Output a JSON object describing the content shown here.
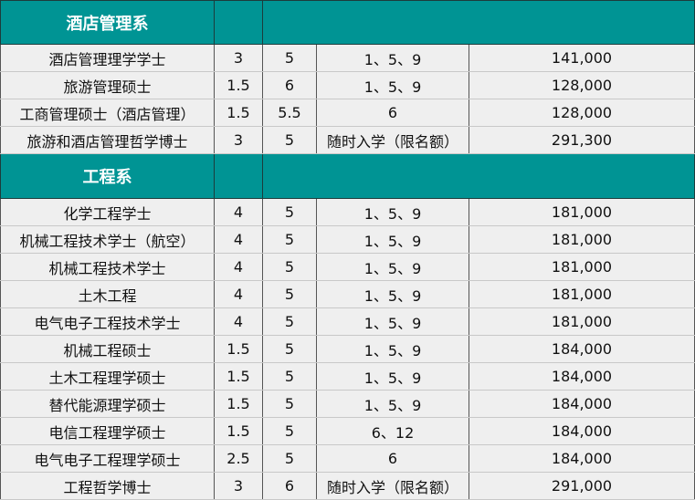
{
  "colors": {
    "section_header_bg": "#009494",
    "row_bg": "#efefef"
  },
  "sections": [
    {
      "title": "酒店管理系",
      "rows": [
        {
          "program": "酒店管理理学学士",
          "duration": "3",
          "ielts": "5",
          "intake": "1、5、9",
          "fee": "141,000"
        },
        {
          "program": "旅游管理硕士",
          "duration": "1.5",
          "ielts": "6",
          "intake": "1、5、9",
          "fee": "128,000"
        },
        {
          "program": "工商管理硕士（酒店管理）",
          "duration": "1.5",
          "ielts": "5.5",
          "intake": "6",
          "fee": "128,000"
        },
        {
          "program": "旅游和酒店管理哲学博士",
          "duration": "3",
          "ielts": "5",
          "intake": "随时入学（限名额）",
          "fee": "291,300"
        }
      ]
    },
    {
      "title": "工程系",
      "rows": [
        {
          "program": "化学工程学士",
          "duration": "4",
          "ielts": "5",
          "intake": "1、5、9",
          "fee": "181,000"
        },
        {
          "program": "机械工程技术学士（航空）",
          "duration": "4",
          "ielts": "5",
          "intake": "1、5、9",
          "fee": "181,000"
        },
        {
          "program": "机械工程技术学士",
          "duration": "4",
          "ielts": "5",
          "intake": "1、5、9",
          "fee": "181,000"
        },
        {
          "program": "土木工程",
          "duration": "4",
          "ielts": "5",
          "intake": "1、5、9",
          "fee": "181,000"
        },
        {
          "program": "电气电子工程技术学士",
          "duration": "4",
          "ielts": "5",
          "intake": "1、5、9",
          "fee": "181,000"
        },
        {
          "program": "机械工程硕士",
          "duration": "1.5",
          "ielts": "5",
          "intake": "1、5、9",
          "fee": "184,000"
        },
        {
          "program": "土木工程理学硕士",
          "duration": "1.5",
          "ielts": "5",
          "intake": "1、5、9",
          "fee": "184,000"
        },
        {
          "program": "替代能源理学硕士",
          "duration": "1.5",
          "ielts": "5",
          "intake": "1、5、9",
          "fee": "184,000"
        },
        {
          "program": "电信工程理学硕士",
          "duration": "1.5",
          "ielts": "5",
          "intake": "6、12",
          "fee": "184,000"
        },
        {
          "program": "电气电子工程理学硕士",
          "duration": "2.5",
          "ielts": "5",
          "intake": "6",
          "fee": "184,000"
        },
        {
          "program": "工程哲学博士",
          "duration": "3",
          "ielts": "6",
          "intake": "随时入学（限名额）",
          "fee": "291,000"
        }
      ]
    }
  ]
}
